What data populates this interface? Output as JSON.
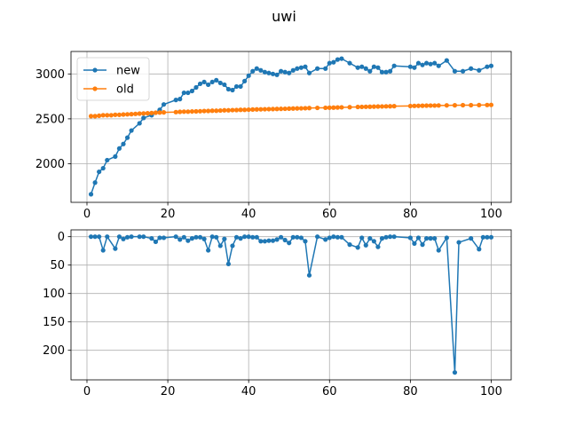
{
  "title": "uwi",
  "colors": {
    "new": "#1f77b4",
    "old": "#ff7f0e",
    "grid": "#b0b0b0"
  },
  "chart_data": [
    {
      "type": "line",
      "title": "",
      "xlabel": "",
      "ylabel": "",
      "xlim": [
        -3.95,
        104.95
      ],
      "ylim": [
        1570,
        3250
      ],
      "xticks": [
        0,
        20,
        40,
        60,
        80,
        100
      ],
      "yticks": [
        2000,
        2500,
        3000
      ],
      "grid": true,
      "legend": "top-left",
      "series": [
        {
          "name": "new",
          "color": "#1f77b4",
          "points": [
            [
              1,
              1660
            ],
            [
              2,
              1790
            ],
            [
              3,
              1910
            ],
            [
              4,
              1950
            ],
            [
              5,
              2040
            ],
            [
              7,
              2080
            ],
            [
              8,
              2170
            ],
            [
              9,
              2220
            ],
            [
              10,
              2290
            ],
            [
              11,
              2370
            ],
            [
              13,
              2450
            ],
            [
              14,
              2510
            ],
            [
              16,
              2540
            ],
            [
              18,
              2600
            ],
            [
              19,
              2660
            ],
            [
              22,
              2710
            ],
            [
              23,
              2720
            ],
            [
              24,
              2790
            ],
            [
              25,
              2790
            ],
            [
              26,
              2810
            ],
            [
              27,
              2850
            ],
            [
              28,
              2890
            ],
            [
              29,
              2910
            ],
            [
              30,
              2880
            ],
            [
              31,
              2910
            ],
            [
              32,
              2930
            ],
            [
              33,
              2900
            ],
            [
              34,
              2880
            ],
            [
              35,
              2830
            ],
            [
              36,
              2820
            ],
            [
              37,
              2860
            ],
            [
              38,
              2860
            ],
            [
              39,
              2920
            ],
            [
              40,
              2980
            ],
            [
              41,
              3030
            ],
            [
              42,
              3060
            ],
            [
              43,
              3040
            ],
            [
              44,
              3020
            ],
            [
              45,
              3010
            ],
            [
              46,
              3000
            ],
            [
              47,
              2990
            ],
            [
              48,
              3030
            ],
            [
              49,
              3020
            ],
            [
              50,
              3010
            ],
            [
              51,
              3040
            ],
            [
              52,
              3060
            ],
            [
              53,
              3070
            ],
            [
              54,
              3080
            ],
            [
              55,
              3010
            ],
            [
              57,
              3060
            ],
            [
              59,
              3060
            ],
            [
              60,
              3120
            ],
            [
              61,
              3130
            ],
            [
              62,
              3160
            ],
            [
              63,
              3170
            ],
            [
              65,
              3120
            ],
            [
              67,
              3070
            ],
            [
              68,
              3080
            ],
            [
              69,
              3060
            ],
            [
              70,
              3030
            ],
            [
              71,
              3080
            ],
            [
              72,
              3070
            ],
            [
              73,
              3020
            ],
            [
              74,
              3020
            ],
            [
              75,
              3030
            ],
            [
              76,
              3090
            ],
            [
              80,
              3080
            ],
            [
              81,
              3070
            ],
            [
              82,
              3120
            ],
            [
              83,
              3100
            ],
            [
              84,
              3120
            ],
            [
              85,
              3110
            ],
            [
              86,
              3120
            ],
            [
              87,
              3090
            ],
            [
              89,
              3150
            ],
            [
              91,
              3030
            ],
            [
              93,
              3030
            ],
            [
              95,
              3060
            ],
            [
              97,
              3040
            ],
            [
              99,
              3080
            ],
            [
              100,
              3090
            ]
          ]
        },
        {
          "name": "old",
          "color": "#ff7f0e",
          "points": [
            [
              1,
              2530
            ],
            [
              2,
              2530
            ],
            [
              3,
              2535
            ],
            [
              4,
              2540
            ],
            [
              5,
              2540
            ],
            [
              6,
              2540
            ],
            [
              7,
              2545
            ],
            [
              8,
              2545
            ],
            [
              9,
              2548
            ],
            [
              10,
              2550
            ],
            [
              11,
              2552
            ],
            [
              12,
              2555
            ],
            [
              13,
              2558
            ],
            [
              14,
              2560
            ],
            [
              15,
              2562
            ],
            [
              16,
              2565
            ],
            [
              17,
              2568
            ],
            [
              18,
              2570
            ],
            [
              19,
              2572
            ],
            [
              22,
              2575
            ],
            [
              23,
              2578
            ],
            [
              24,
              2580
            ],
            [
              25,
              2580
            ],
            [
              26,
              2582
            ],
            [
              27,
              2583
            ],
            [
              28,
              2585
            ],
            [
              29,
              2587
            ],
            [
              30,
              2588
            ],
            [
              31,
              2590
            ],
            [
              32,
              2590
            ],
            [
              33,
              2592
            ],
            [
              34,
              2595
            ],
            [
              35,
              2595
            ],
            [
              36,
              2597
            ],
            [
              37,
              2598
            ],
            [
              38,
              2600
            ],
            [
              39,
              2600
            ],
            [
              40,
              2602
            ],
            [
              41,
              2604
            ],
            [
              42,
              2605
            ],
            [
              43,
              2606
            ],
            [
              44,
              2607
            ],
            [
              45,
              2608
            ],
            [
              46,
              2609
            ],
            [
              47,
              2610
            ],
            [
              48,
              2611
            ],
            [
              49,
              2612
            ],
            [
              50,
              2614
            ],
            [
              51,
              2615
            ],
            [
              52,
              2616
            ],
            [
              53,
              2617
            ],
            [
              54,
              2618
            ],
            [
              55,
              2620
            ],
            [
              57,
              2622
            ],
            [
              59,
              2623
            ],
            [
              60,
              2624
            ],
            [
              61,
              2625
            ],
            [
              62,
              2626
            ],
            [
              63,
              2628
            ],
            [
              65,
              2630
            ],
            [
              67,
              2632
            ],
            [
              68,
              2633
            ],
            [
              69,
              2634
            ],
            [
              70,
              2635
            ],
            [
              71,
              2636
            ],
            [
              72,
              2637
            ],
            [
              73,
              2638
            ],
            [
              74,
              2639
            ],
            [
              75,
              2640
            ],
            [
              76,
              2641
            ],
            [
              80,
              2643
            ],
            [
              81,
              2644
            ],
            [
              82,
              2645
            ],
            [
              83,
              2646
            ],
            [
              84,
              2647
            ],
            [
              85,
              2648
            ],
            [
              86,
              2648
            ],
            [
              87,
              2649
            ],
            [
              89,
              2650
            ],
            [
              91,
              2651
            ],
            [
              93,
              2652
            ],
            [
              95,
              2652
            ],
            [
              97,
              2653
            ],
            [
              99,
              2654
            ],
            [
              100,
              2655
            ]
          ]
        }
      ]
    },
    {
      "type": "line",
      "title": "",
      "xlabel": "",
      "ylabel": "",
      "xlim": [
        -3.95,
        104.95
      ],
      "ylim": [
        252,
        -12
      ],
      "y_inverted": true,
      "xticks": [
        0,
        20,
        40,
        60,
        80,
        100
      ],
      "yticks": [
        0,
        50,
        100,
        150,
        200
      ],
      "grid": true,
      "series": [
        {
          "name": "",
          "color": "#1f77b4",
          "points": [
            [
              1,
              0
            ],
            [
              2,
              0
            ],
            [
              3,
              0
            ],
            [
              4,
              24
            ],
            [
              5,
              0
            ],
            [
              7,
              21
            ],
            [
              8,
              0
            ],
            [
              9,
              4
            ],
            [
              10,
              1
            ],
            [
              11,
              0
            ],
            [
              13,
              0
            ],
            [
              14,
              0
            ],
            [
              16,
              3
            ],
            [
              17,
              9
            ],
            [
              18,
              2
            ],
            [
              19,
              2
            ],
            [
              22,
              0
            ],
            [
              23,
              5
            ],
            [
              24,
              1
            ],
            [
              25,
              7
            ],
            [
              26,
              3
            ],
            [
              27,
              1
            ],
            [
              28,
              1
            ],
            [
              29,
              4
            ],
            [
              30,
              24
            ],
            [
              31,
              0
            ],
            [
              32,
              1
            ],
            [
              33,
              16
            ],
            [
              34,
              4
            ],
            [
              35,
              48
            ],
            [
              36,
              16
            ],
            [
              37,
              1
            ],
            [
              38,
              3
            ],
            [
              39,
              0
            ],
            [
              40,
              0
            ],
            [
              41,
              1
            ],
            [
              42,
              1
            ],
            [
              43,
              8
            ],
            [
              44,
              8
            ],
            [
              45,
              7
            ],
            [
              46,
              7
            ],
            [
              47,
              5
            ],
            [
              48,
              1
            ],
            [
              49,
              6
            ],
            [
              50,
              11
            ],
            [
              51,
              1
            ],
            [
              52,
              1
            ],
            [
              53,
              2
            ],
            [
              54,
              8
            ],
            [
              55,
              68
            ],
            [
              57,
              0
            ],
            [
              59,
              5
            ],
            [
              60,
              2
            ],
            [
              61,
              0
            ],
            [
              62,
              1
            ],
            [
              63,
              1
            ],
            [
              65,
              14
            ],
            [
              67,
              19
            ],
            [
              68,
              2
            ],
            [
              69,
              15
            ],
            [
              70,
              3
            ],
            [
              71,
              8
            ],
            [
              72,
              18
            ],
            [
              73,
              3
            ],
            [
              74,
              1
            ],
            [
              75,
              0
            ],
            [
              76,
              0
            ],
            [
              80,
              2
            ],
            [
              81,
              12
            ],
            [
              82,
              2
            ],
            [
              83,
              14
            ],
            [
              84,
              3
            ],
            [
              85,
              3
            ],
            [
              86,
              3
            ],
            [
              87,
              24
            ],
            [
              89,
              2
            ],
            [
              91,
              239
            ],
            [
              92,
              10
            ],
            [
              95,
              3
            ],
            [
              97,
              22
            ],
            [
              98,
              1
            ],
            [
              99,
              1
            ],
            [
              100,
              1
            ]
          ]
        }
      ]
    }
  ]
}
